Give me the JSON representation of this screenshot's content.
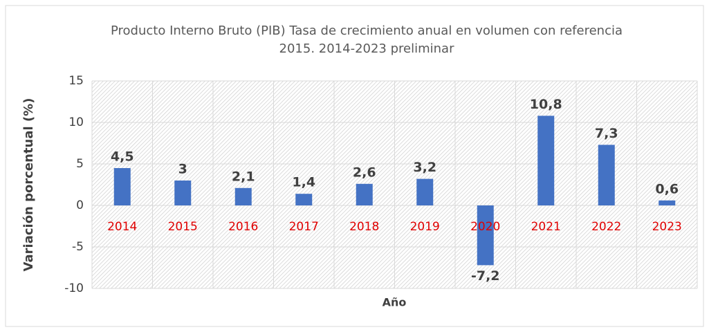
{
  "chart_data": {
    "type": "bar",
    "title": [
      "Producto Interno Bruto (PIB) Tasa de crecimiento anual en volumen con referencia",
      "2015. 2014-2023 preliminar"
    ],
    "x_label": "Año",
    "y_label": "Variación porcentual (%)",
    "categories": [
      "2014",
      "2015",
      "2016",
      "2017",
      "2018",
      "2019",
      "2020",
      "2021",
      "2022",
      "2023"
    ],
    "values": [
      4.5,
      3,
      2.1,
      1.4,
      2.6,
      3.2,
      -7.2,
      10.8,
      7.3,
      0.6
    ],
    "value_labels": [
      "4,5",
      "3",
      "2,1",
      "1,4",
      "2,6",
      "3,2",
      "-7,2",
      "10,8",
      "7,3",
      "0,6"
    ],
    "color": "#4472c4",
    "category_label_color": "#e00000",
    "ylim": [
      -10,
      15
    ],
    "yticks": [
      -10,
      -5,
      0,
      5,
      10,
      15
    ],
    "grid": true
  }
}
